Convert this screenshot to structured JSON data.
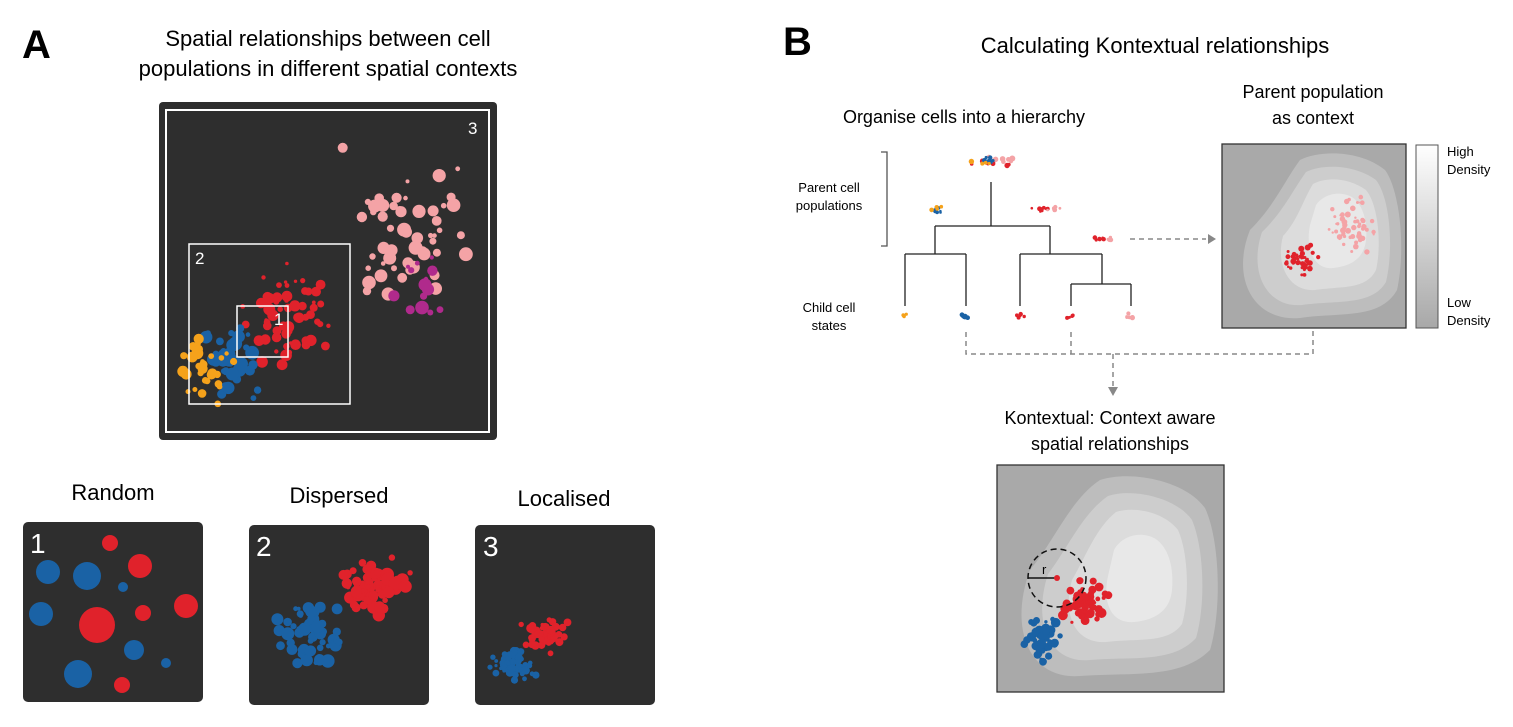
{
  "panel_a": {
    "letter": "A",
    "title_line1": "Spatial relationships between cell",
    "title_line2": "populations in different spatial contexts",
    "region_labels": [
      "1",
      "2",
      "3"
    ],
    "subpanels": [
      {
        "number": "1",
        "label": "Random"
      },
      {
        "number": "2",
        "label": "Dispersed"
      },
      {
        "number": "3",
        "label": "Localised"
      }
    ]
  },
  "panel_b": {
    "letter": "B",
    "title": "Calculating Kontextual relationships",
    "hierarchy_title": "Organise cells into a hierarchy",
    "parent_label_line1": "Parent cell",
    "parent_label_line2": "populations",
    "child_label_line1": "Child cell",
    "child_label_line2": "states",
    "context_title_line1": "Parent population",
    "context_title_line2": "as context",
    "legend_high_line1": "High",
    "legend_high_line2": "Density",
    "legend_low_line1": "Low",
    "legend_low_line2": "Density",
    "kontextual_title_line1": "Kontextual: Context aware",
    "kontextual_title_line2": "spatial relationships",
    "radius_label": "r"
  },
  "colors": {
    "background_dark": "#2e2e2e",
    "blue": "#1a62a5",
    "red": "#e0222b",
    "orange": "#f5a21b",
    "pink": "#f4a3a6",
    "magenta": "#b02a8c",
    "density_low": "#a9a9a9",
    "density_high": "#ededed"
  }
}
